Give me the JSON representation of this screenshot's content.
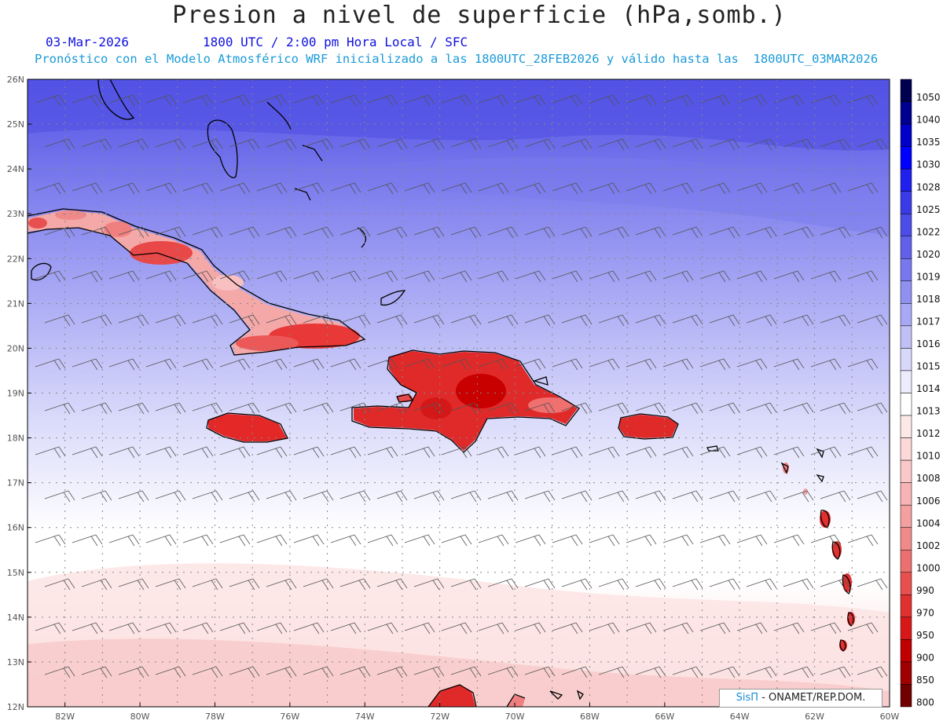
{
  "header": {
    "title": "Presion a nivel de superficie (hPa,somb.)",
    "date": "03-Mar-2026",
    "time": "1800 UTC / 2:00 pm Hora Local / SFC",
    "model_line": "Pronóstico con el Modelo Atmosférico WRF inicializado a las 1800UTC_28FEB2026 y válido hasta las  1800UTC_03MAR2026"
  },
  "map": {
    "lat_range": [
      12,
      26
    ],
    "lon_range": [
      -83,
      -60
    ],
    "lat_labels": [
      "12N",
      "13N",
      "14N",
      "15N",
      "16N",
      "17N",
      "18N",
      "19N",
      "20N",
      "21N",
      "22N",
      "23N",
      "24N",
      "25N",
      "26N"
    ],
    "lon_labels": [
      "82W",
      "80W",
      "78W",
      "76W",
      "74W",
      "72W",
      "70W",
      "68W",
      "66W",
      "64W",
      "62W",
      "60W"
    ],
    "grid": "dotted"
  },
  "legend": {
    "levels": [
      "1050",
      "1040",
      "1035",
      "1030",
      "1028",
      "1025",
      "1022",
      "1020",
      "1019",
      "1018",
      "1017",
      "1016",
      "1015",
      "1014",
      "1013",
      "1012",
      "1010",
      "1008",
      "1006",
      "1004",
      "1002",
      "1000",
      "990",
      "970",
      "950",
      "900",
      "850",
      "800"
    ],
    "colors": [
      "#000050",
      "#000090",
      "#0000c8",
      "#0000ff",
      "#2020ee",
      "#3a3ae8",
      "#4c4ce8",
      "#6060ea",
      "#7878ee",
      "#9090f0",
      "#a8a8f4",
      "#c0c0f6",
      "#d8d8fa",
      "#ececfd",
      "#ffffff",
      "#fde8e8",
      "#fcd8d8",
      "#fac8c8",
      "#f8b4b4",
      "#f4a0a0",
      "#f08a8a",
      "#ec7070",
      "#e85050",
      "#e03030",
      "#d81818",
      "#c00000",
      "#a00000",
      "#700000"
    ]
  },
  "credit": {
    "brand": "SisΠ",
    "org": " - ONAMET/REP.DOM."
  }
}
